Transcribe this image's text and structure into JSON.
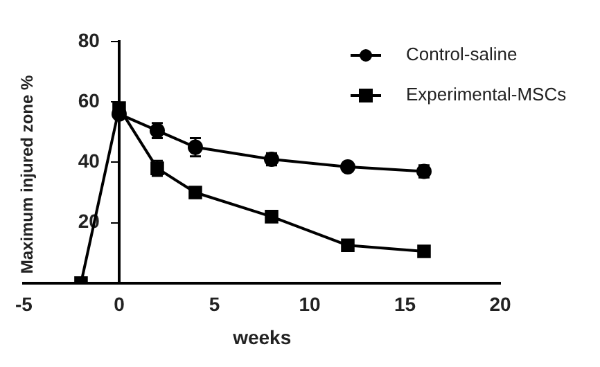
{
  "chart_data": {
    "type": "line",
    "xlabel": "weeks",
    "ylabel": "Maximum injured zone %",
    "xlim": [
      -5,
      20
    ],
    "xticks": [
      -5,
      0,
      5,
      10,
      15,
      20
    ],
    "ylim": [
      0,
      80
    ],
    "yticks": [
      {
        "value": 0,
        "label": null
      },
      20,
      40,
      60,
      80
    ],
    "legend": "top right",
    "grid": false,
    "series": [
      {
        "name": "Control-saline",
        "color": "#000000",
        "marker": "circle",
        "x": [
          0,
          2,
          4,
          8,
          12,
          16
        ],
        "values": [
          56,
          50.5,
          45,
          41,
          38.5,
          37
        ],
        "errors": [
          null,
          2.5,
          3,
          2,
          1.5,
          2
        ]
      },
      {
        "name": "Experimental-MSCs",
        "color": "#000000",
        "marker": "square",
        "x": [
          -2,
          0,
          2,
          4,
          8,
          12,
          16
        ],
        "values": [
          0,
          58,
          38,
          30,
          22,
          12.5,
          10.5
        ],
        "errors": [
          null,
          null,
          2.5,
          null,
          null,
          null,
          null
        ]
      }
    ]
  }
}
